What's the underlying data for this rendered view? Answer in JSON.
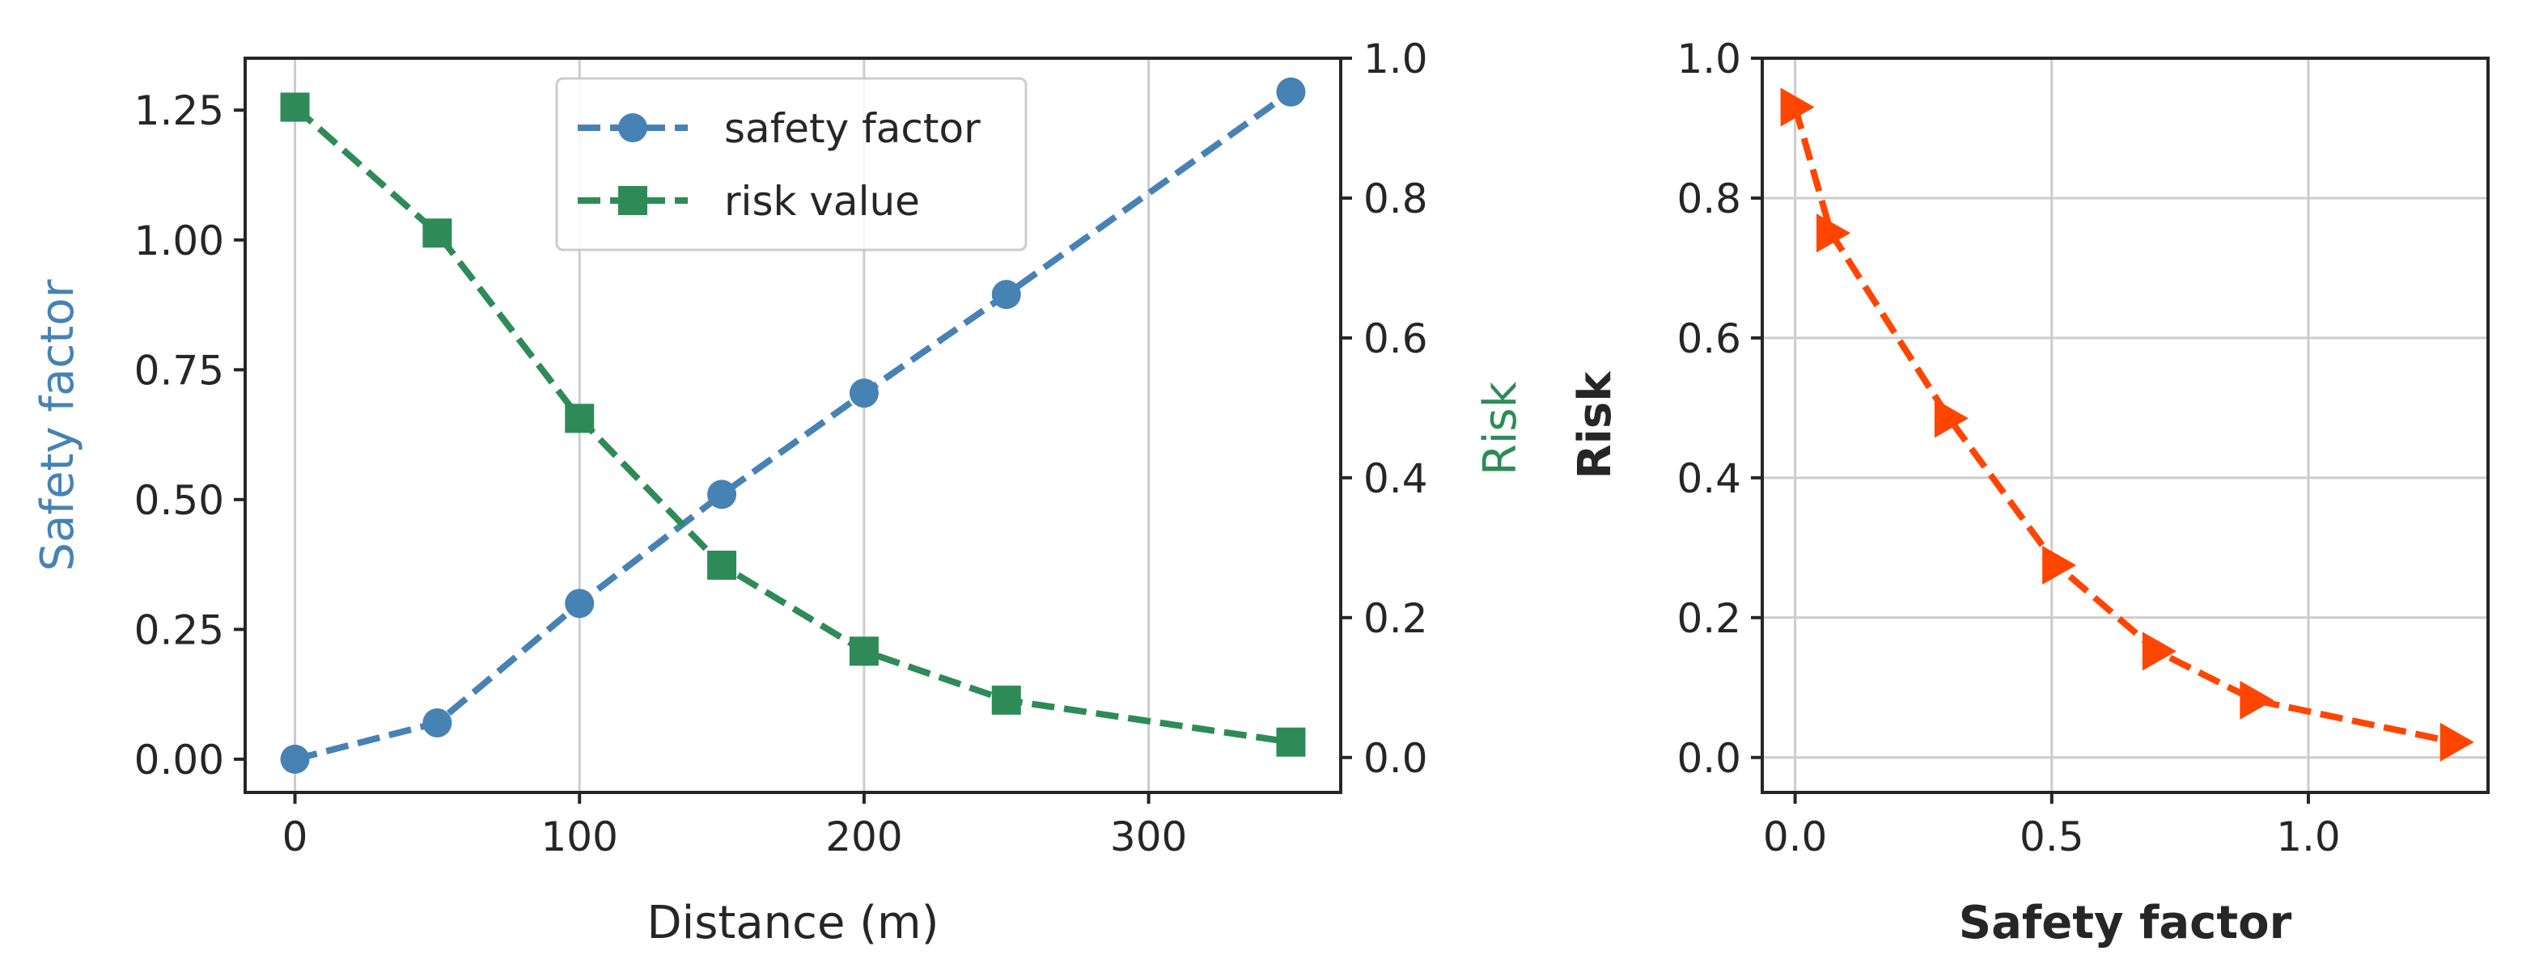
{
  "chart_data": [
    {
      "type": "line",
      "x": [
        0,
        50,
        100,
        150,
        200,
        250,
        350
      ],
      "xlabel": "Distance (m)",
      "xlim": [
        -17.5,
        367.5
      ],
      "xticks": [
        0,
        100,
        200,
        300
      ],
      "xtick_labels": [
        "0",
        "100",
        "200",
        "300"
      ],
      "grid": "vertical",
      "legend_position": "top-center",
      "series": [
        {
          "name": "safety factor",
          "axis": "left",
          "color": "#4682b4",
          "marker": "circle",
          "linestyle": "dashed",
          "values": [
            0.0,
            0.07,
            0.3,
            0.51,
            0.705,
            0.895,
            1.285
          ]
        },
        {
          "name": "risk value",
          "axis": "right",
          "color": "#2e8b57",
          "marker": "square",
          "linestyle": "dashed",
          "values": [
            0.93,
            0.75,
            0.485,
            0.275,
            0.152,
            0.082,
            0.022
          ]
        }
      ],
      "left_axis": {
        "label": "Safety factor",
        "color": "#4682b4",
        "ylim": [
          -0.064,
          1.35
        ],
        "ticks": [
          0.0,
          0.25,
          0.5,
          0.75,
          1.0,
          1.25
        ],
        "tick_labels": [
          "0.00",
          "0.25",
          "0.50",
          "0.75",
          "1.00",
          "1.25"
        ]
      },
      "right_axis": {
        "label": "Risk",
        "color": "#2e8b57",
        "ylim": [
          -0.05,
          1.0
        ],
        "ticks": [
          0.0,
          0.2,
          0.4,
          0.6,
          0.8,
          1.0
        ],
        "tick_labels": [
          "0.0",
          "0.2",
          "0.4",
          "0.6",
          "0.8",
          "1.0"
        ]
      }
    },
    {
      "type": "line",
      "color": "#ff4500",
      "marker": "triangle-right",
      "linestyle": "dashed",
      "grid": "both",
      "x": [
        0.0,
        0.07,
        0.3,
        0.51,
        0.705,
        0.895,
        1.285
      ],
      "y": [
        0.93,
        0.75,
        0.485,
        0.275,
        0.152,
        0.082,
        0.022
      ],
      "xlabel": "Safety factor",
      "ylabel": "Risk",
      "xlim": [
        -0.064,
        1.35
      ],
      "ylim": [
        -0.05,
        1.0
      ],
      "xticks": [
        0.0,
        0.5,
        1.0
      ],
      "xtick_labels": [
        "0.0",
        "0.5",
        "1.0"
      ],
      "yticks": [
        0.0,
        0.2,
        0.4,
        0.6,
        0.8,
        1.0
      ],
      "ytick_labels": [
        "0.0",
        "0.2",
        "0.4",
        "0.6",
        "0.8",
        "1.0"
      ]
    }
  ]
}
